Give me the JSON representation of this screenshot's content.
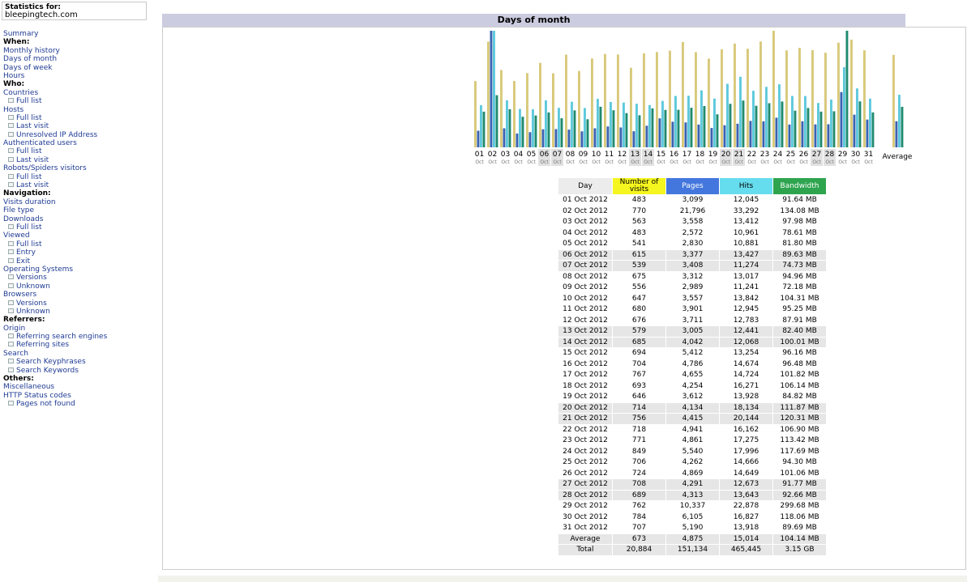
{
  "sidebar": {
    "stats_label": "Statistics for:",
    "site": "bleepingtech.com",
    "menu": [
      {
        "t": "Summary",
        "k": "link"
      },
      {
        "t": "When:",
        "k": "header"
      },
      {
        "t": "Monthly history",
        "k": "link"
      },
      {
        "t": "Days of month",
        "k": "link"
      },
      {
        "t": "Days of week",
        "k": "link"
      },
      {
        "t": "Hours",
        "k": "link"
      },
      {
        "t": "Who:",
        "k": "header"
      },
      {
        "t": "Countries",
        "k": "link"
      },
      {
        "t": "Full list",
        "k": "sub"
      },
      {
        "t": "Hosts",
        "k": "link"
      },
      {
        "t": "Full list",
        "k": "sub"
      },
      {
        "t": "Last visit",
        "k": "sub"
      },
      {
        "t": "Unresolved IP Address",
        "k": "sub"
      },
      {
        "t": "Authenticated users",
        "k": "link"
      },
      {
        "t": "Full list",
        "k": "sub"
      },
      {
        "t": "Last visit",
        "k": "sub"
      },
      {
        "t": "Robots/Spiders visitors",
        "k": "link"
      },
      {
        "t": "Full list",
        "k": "sub"
      },
      {
        "t": "Last visit",
        "k": "sub"
      },
      {
        "t": "Navigation:",
        "k": "header"
      },
      {
        "t": "Visits duration",
        "k": "link"
      },
      {
        "t": "File type",
        "k": "link"
      },
      {
        "t": "Downloads",
        "k": "link"
      },
      {
        "t": "Full list",
        "k": "sub"
      },
      {
        "t": "Viewed",
        "k": "link"
      },
      {
        "t": "Full list",
        "k": "sub"
      },
      {
        "t": "Entry",
        "k": "sub"
      },
      {
        "t": "Exit",
        "k": "sub"
      },
      {
        "t": "Operating Systems",
        "k": "link"
      },
      {
        "t": "Versions",
        "k": "sub"
      },
      {
        "t": "Unknown",
        "k": "sub"
      },
      {
        "t": "Browsers",
        "k": "link"
      },
      {
        "t": "Versions",
        "k": "sub"
      },
      {
        "t": "Unknown",
        "k": "sub"
      },
      {
        "t": "Referrers:",
        "k": "header"
      },
      {
        "t": "Origin",
        "k": "link"
      },
      {
        "t": "Referring search engines",
        "k": "sub"
      },
      {
        "t": "Referring sites",
        "k": "sub"
      },
      {
        "t": "Search",
        "k": "link"
      },
      {
        "t": "Search Keyphrases",
        "k": "sub"
      },
      {
        "t": "Search Keywords",
        "k": "sub"
      },
      {
        "t": "Others:",
        "k": "header"
      },
      {
        "t": "Miscellaneous",
        "k": "link"
      },
      {
        "t": "HTTP Status codes",
        "k": "link"
      },
      {
        "t": "Pages not found",
        "k": "sub"
      }
    ]
  },
  "panel": {
    "title": "Days of month"
  },
  "table": {
    "headers": {
      "day": "Day",
      "visits": "Number of visits",
      "pages": "Pages",
      "hits": "Hits",
      "bandwidth": "Bandwidth"
    },
    "rows": [
      {
        "day": "01 Oct 2012",
        "visits": "483",
        "pages": "3,099",
        "hits": "12,045",
        "bw": "91.64 MB",
        "weekend": false
      },
      {
        "day": "02 Oct 2012",
        "visits": "770",
        "pages": "21,796",
        "hits": "33,292",
        "bw": "134.08 MB",
        "weekend": false
      },
      {
        "day": "03 Oct 2012",
        "visits": "563",
        "pages": "3,558",
        "hits": "13,412",
        "bw": "97.98 MB",
        "weekend": false
      },
      {
        "day": "04 Oct 2012",
        "visits": "483",
        "pages": "2,572",
        "hits": "10,961",
        "bw": "78.61 MB",
        "weekend": false
      },
      {
        "day": "05 Oct 2012",
        "visits": "541",
        "pages": "2,830",
        "hits": "10,881",
        "bw": "81.80 MB",
        "weekend": false
      },
      {
        "day": "06 Oct 2012",
        "visits": "615",
        "pages": "3,377",
        "hits": "13,427",
        "bw": "89.63 MB",
        "weekend": true
      },
      {
        "day": "07 Oct 2012",
        "visits": "539",
        "pages": "3,408",
        "hits": "11,274",
        "bw": "74.73 MB",
        "weekend": true
      },
      {
        "day": "08 Oct 2012",
        "visits": "675",
        "pages": "3,312",
        "hits": "13,017",
        "bw": "94.96 MB",
        "weekend": false
      },
      {
        "day": "09 Oct 2012",
        "visits": "556",
        "pages": "2,989",
        "hits": "11,241",
        "bw": "72.18 MB",
        "weekend": false
      },
      {
        "day": "10 Oct 2012",
        "visits": "647",
        "pages": "3,557",
        "hits": "13,842",
        "bw": "104.31 MB",
        "weekend": false
      },
      {
        "day": "11 Oct 2012",
        "visits": "680",
        "pages": "3,901",
        "hits": "12,945",
        "bw": "95.25 MB",
        "weekend": false
      },
      {
        "day": "12 Oct 2012",
        "visits": "676",
        "pages": "3,711",
        "hits": "12,783",
        "bw": "87.91 MB",
        "weekend": false
      },
      {
        "day": "13 Oct 2012",
        "visits": "579",
        "pages": "3,005",
        "hits": "12,441",
        "bw": "82.40 MB",
        "weekend": true
      },
      {
        "day": "14 Oct 2012",
        "visits": "685",
        "pages": "4,042",
        "hits": "12,068",
        "bw": "100.01 MB",
        "weekend": true
      },
      {
        "day": "15 Oct 2012",
        "visits": "694",
        "pages": "5,412",
        "hits": "13,254",
        "bw": "96.16 MB",
        "weekend": false
      },
      {
        "day": "16 Oct 2012",
        "visits": "704",
        "pages": "4,786",
        "hits": "14,674",
        "bw": "96.48 MB",
        "weekend": false
      },
      {
        "day": "17 Oct 2012",
        "visits": "767",
        "pages": "4,655",
        "hits": "14,724",
        "bw": "101.82 MB",
        "weekend": false
      },
      {
        "day": "18 Oct 2012",
        "visits": "693",
        "pages": "4,254",
        "hits": "16,271",
        "bw": "106.14 MB",
        "weekend": false
      },
      {
        "day": "19 Oct 2012",
        "visits": "646",
        "pages": "3,612",
        "hits": "13,928",
        "bw": "84.82 MB",
        "weekend": false
      },
      {
        "day": "20 Oct 2012",
        "visits": "714",
        "pages": "4,134",
        "hits": "18,134",
        "bw": "111.87 MB",
        "weekend": true
      },
      {
        "day": "21 Oct 2012",
        "visits": "756",
        "pages": "4,415",
        "hits": "20,144",
        "bw": "120.31 MB",
        "weekend": true
      },
      {
        "day": "22 Oct 2012",
        "visits": "718",
        "pages": "4,941",
        "hits": "16,162",
        "bw": "106.90 MB",
        "weekend": false
      },
      {
        "day": "23 Oct 2012",
        "visits": "771",
        "pages": "4,861",
        "hits": "17,275",
        "bw": "113.42 MB",
        "weekend": false
      },
      {
        "day": "24 Oct 2012",
        "visits": "849",
        "pages": "5,540",
        "hits": "17,996",
        "bw": "117.69 MB",
        "weekend": false
      },
      {
        "day": "25 Oct 2012",
        "visits": "706",
        "pages": "4,262",
        "hits": "14,666",
        "bw": "94.30 MB",
        "weekend": false
      },
      {
        "day": "26 Oct 2012",
        "visits": "724",
        "pages": "4,869",
        "hits": "14,649",
        "bw": "101.06 MB",
        "weekend": false
      },
      {
        "day": "27 Oct 2012",
        "visits": "708",
        "pages": "4,291",
        "hits": "12,673",
        "bw": "91.77 MB",
        "weekend": true
      },
      {
        "day": "28 Oct 2012",
        "visits": "689",
        "pages": "4,313",
        "hits": "13,643",
        "bw": "92.66 MB",
        "weekend": true
      },
      {
        "day": "29 Oct 2012",
        "visits": "762",
        "pages": "10,337",
        "hits": "22,878",
        "bw": "299.68 MB",
        "weekend": false
      },
      {
        "day": "30 Oct 2012",
        "visits": "784",
        "pages": "6,105",
        "hits": "16,827",
        "bw": "118.06 MB",
        "weekend": false
      },
      {
        "day": "31 Oct 2012",
        "visits": "707",
        "pages": "5,190",
        "hits": "13,918",
        "bw": "89.69 MB",
        "weekend": false
      }
    ],
    "average": {
      "day": "Average",
      "visits": "673",
      "pages": "4,875",
      "hits": "15,014",
      "bw": "104.14 MB"
    },
    "total": {
      "day": "Total",
      "visits": "20,884",
      "pages": "151,134",
      "hits": "465,445",
      "bw": "3.15 GB"
    }
  },
  "colors": {
    "visits": "#d8c97a",
    "pages": "#3a62b0",
    "hits": "#5ec9dc",
    "bandwidth": "#1f8a6e",
    "weekend_bg": "#e6e6e6"
  },
  "chart_data": {
    "type": "bar",
    "categories": [
      "01",
      "02",
      "03",
      "04",
      "05",
      "06",
      "07",
      "08",
      "09",
      "10",
      "11",
      "12",
      "13",
      "14",
      "15",
      "16",
      "17",
      "18",
      "19",
      "20",
      "21",
      "22",
      "23",
      "24",
      "25",
      "26",
      "27",
      "28",
      "29",
      "30",
      "31"
    ],
    "month_label": "Oct",
    "average_label": "Average",
    "weekend_days": [
      "06",
      "07",
      "13",
      "14",
      "20",
      "21",
      "27",
      "28"
    ],
    "series": [
      {
        "name": "Number of visits",
        "values": [
          483,
          770,
          563,
          483,
          541,
          615,
          539,
          675,
          556,
          647,
          680,
          676,
          579,
          685,
          694,
          704,
          767,
          693,
          646,
          714,
          756,
          718,
          771,
          849,
          706,
          724,
          708,
          689,
          762,
          784,
          707
        ],
        "average": 673
      },
      {
        "name": "Pages",
        "values": [
          3099,
          21796,
          3558,
          2572,
          2830,
          3377,
          3408,
          3312,
          2989,
          3557,
          3901,
          3711,
          3005,
          4042,
          5412,
          4786,
          4655,
          4254,
          3612,
          4134,
          4415,
          4941,
          4861,
          5540,
          4262,
          4869,
          4291,
          4313,
          10337,
          6105,
          5190
        ],
        "average": 4875
      },
      {
        "name": "Hits",
        "values": [
          12045,
          33292,
          13412,
          10961,
          10881,
          13427,
          11274,
          13017,
          11241,
          13842,
          12945,
          12783,
          12441,
          12068,
          13254,
          14674,
          14724,
          16271,
          13928,
          18134,
          20144,
          16162,
          17275,
          17996,
          14666,
          14649,
          12673,
          13643,
          22878,
          16827,
          13918
        ],
        "average": 15014
      },
      {
        "name": "Bandwidth",
        "values": [
          91.64,
          134.08,
          97.98,
          78.61,
          81.8,
          89.63,
          74.73,
          94.96,
          72.18,
          104.31,
          95.25,
          87.91,
          82.4,
          100.01,
          96.16,
          96.48,
          101.82,
          106.14,
          84.82,
          111.87,
          120.31,
          106.9,
          113.42,
          117.69,
          94.3,
          101.06,
          91.77,
          92.66,
          299.68,
          118.06,
          89.69
        ],
        "average": 104.14,
        "unit": "MB"
      }
    ],
    "grid": false,
    "legend": "none"
  }
}
